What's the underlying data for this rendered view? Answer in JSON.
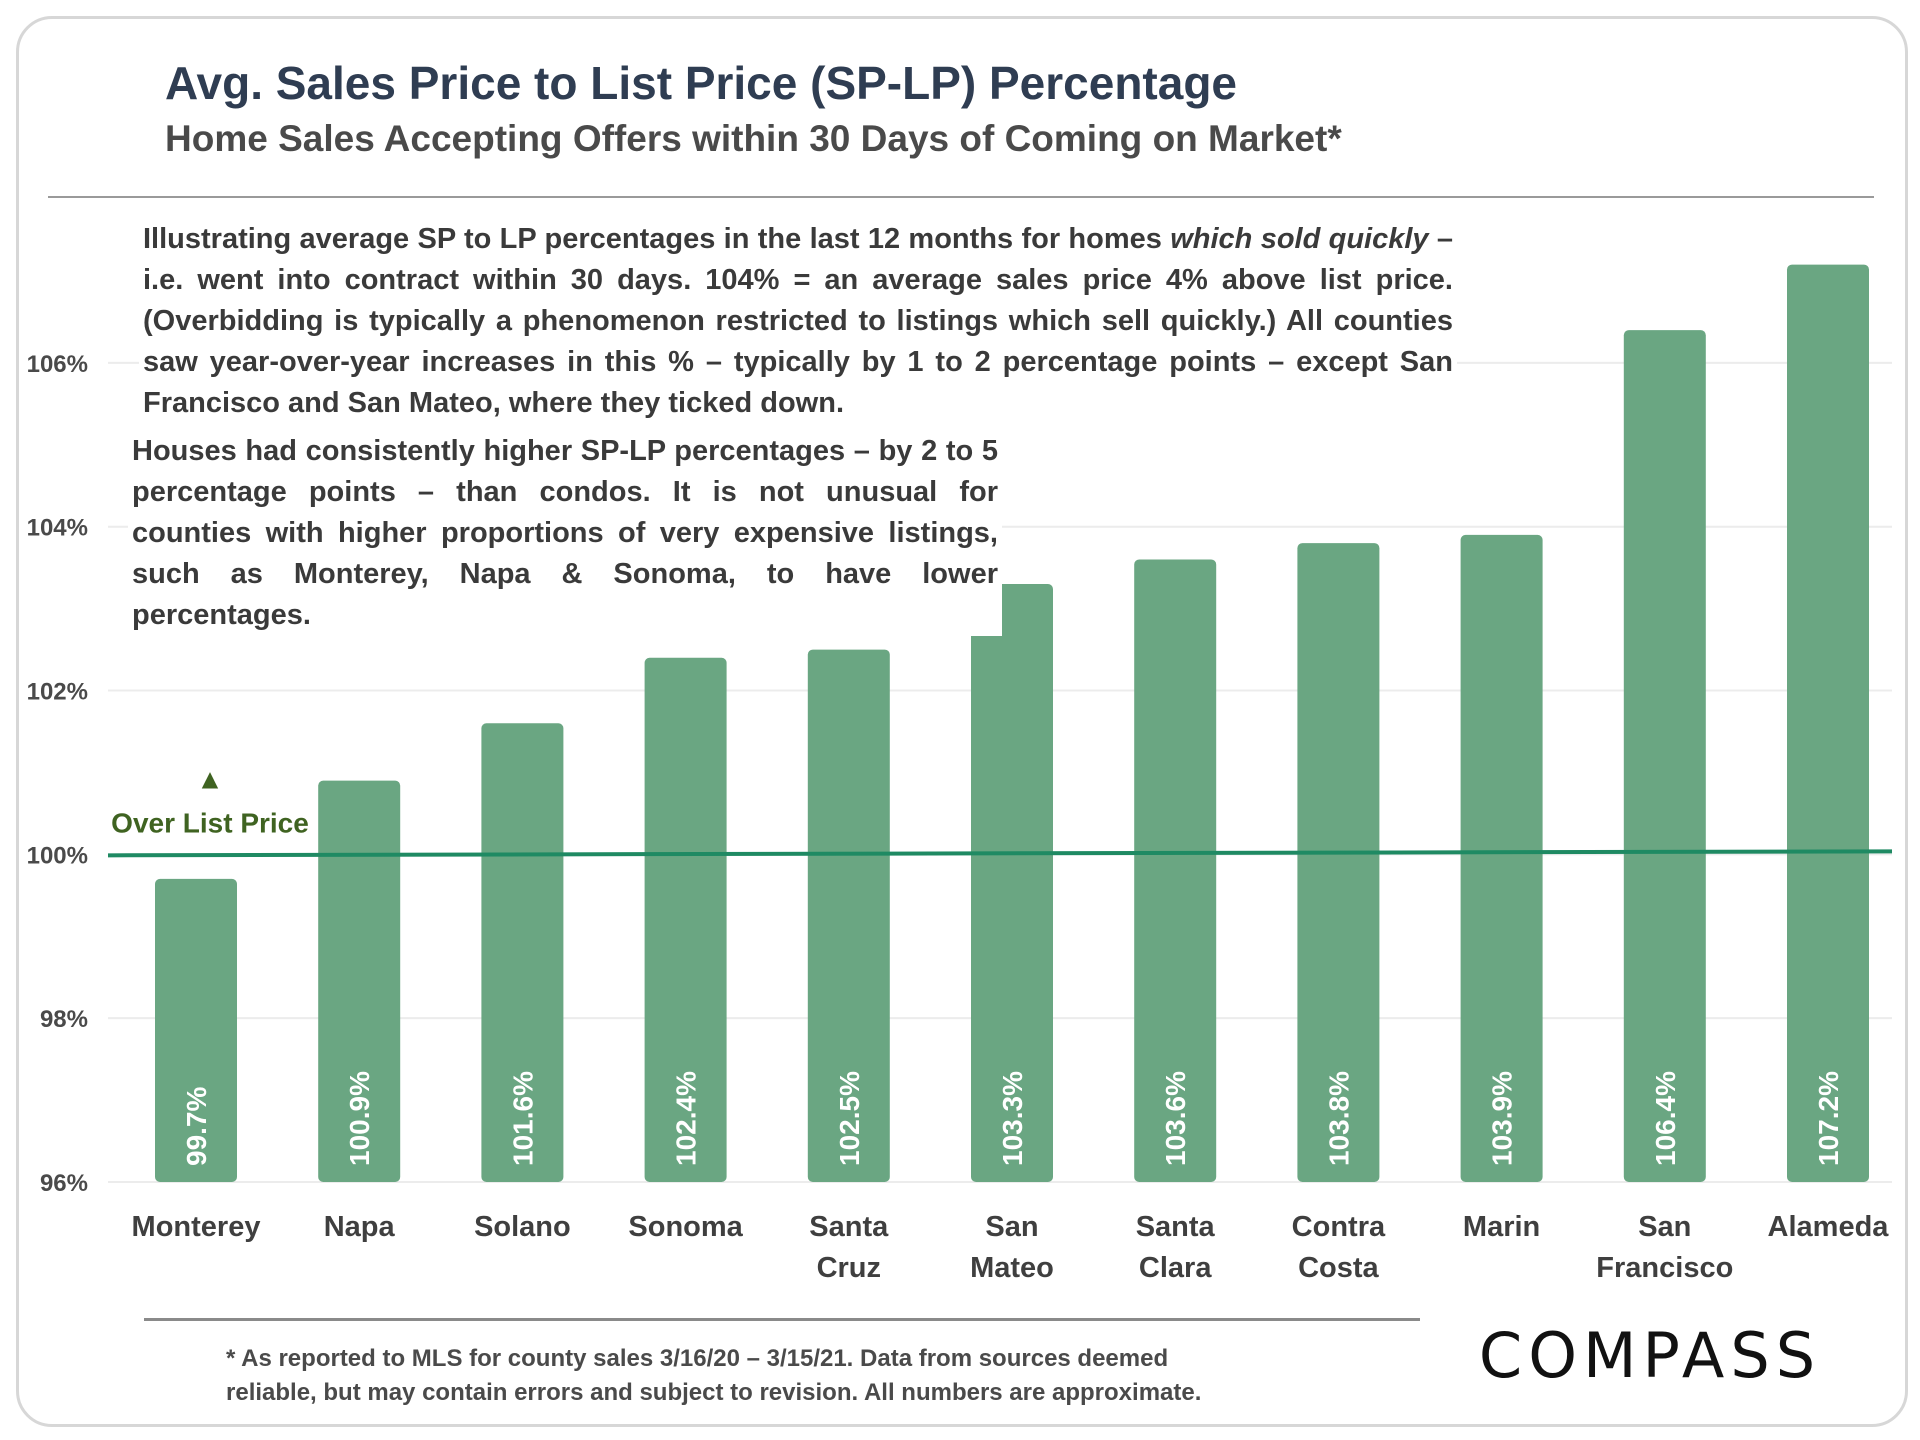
{
  "header": {
    "title": "Avg. Sales Price to List Price (SP-LP) Percentage",
    "subtitle": "Home Sales Accepting Offers within 30 Days of Coming on Market*"
  },
  "notes": {
    "note1_part1": "Illustrating average SP to LP percentages in the last 12 months for homes ",
    "note1_italic": "which sold quickly",
    "note1_part2": " – i.e. went into contract within 30 days. 104% = an average sales price 4% above list price. (Overbidding is typically a phenomenon restricted to listings which sell quickly.) All counties saw year-over-year increases in this % – typically by 1 to 2 percentage points – except San Francisco and San Mateo, where they ticked down.",
    "note2": "Houses had consistently higher SP-LP percentages – by 2 to 5 percentage points – than condos. It is not unusual for counties with higher proportions of very expensive listings, such as Monterey, Napa & Sonoma, to have lower percentages."
  },
  "footnote": {
    "line1": "* As reported to MLS for county sales 3/16/20 – 3/15/21. Data from sources deemed",
    "line2": "reliable, but may contain errors and subject to revision. All numbers are approximate."
  },
  "logo": {
    "text": "COMPASS"
  },
  "colors": {
    "bar": "#6aa682",
    "reference_line": "#1f8a63",
    "annotation": "#3f6321",
    "grid": "#ececec"
  },
  "chart_data": {
    "type": "bar",
    "title": "Avg. Sales Price to List Price (SP-LP) Percentage",
    "subtitle": "Home Sales Accepting Offers within 30 Days of Coming on Market*",
    "xlabel": "",
    "ylabel": "",
    "ylim": [
      96,
      107.5
    ],
    "yticks": [
      96,
      98,
      100,
      102,
      104,
      106
    ],
    "ytick_labels": [
      "96%",
      "98%",
      "100%",
      "102%",
      "104%",
      "106%"
    ],
    "grid": true,
    "categories": [
      [
        "Monterey"
      ],
      [
        "Napa"
      ],
      [
        "Solano"
      ],
      [
        "Sonoma"
      ],
      [
        "Santa",
        "Cruz"
      ],
      [
        "San",
        "Mateo"
      ],
      [
        "Santa",
        "Clara"
      ],
      [
        "Contra",
        "Costa"
      ],
      [
        "Marin"
      ],
      [
        "San",
        "Francisco"
      ],
      [
        "Alameda"
      ]
    ],
    "values": [
      99.7,
      100.9,
      101.6,
      102.4,
      102.5,
      103.3,
      103.6,
      103.8,
      103.9,
      106.4,
      107.2
    ],
    "value_labels": [
      "99.7%",
      "100.9%",
      "101.6%",
      "102.4%",
      "102.5%",
      "103.3%",
      "103.6%",
      "103.8%",
      "103.9%",
      "106.4%",
      "107.2%"
    ],
    "reference_line": {
      "value": 100,
      "label": "Over List Price",
      "marker": "▲"
    }
  }
}
